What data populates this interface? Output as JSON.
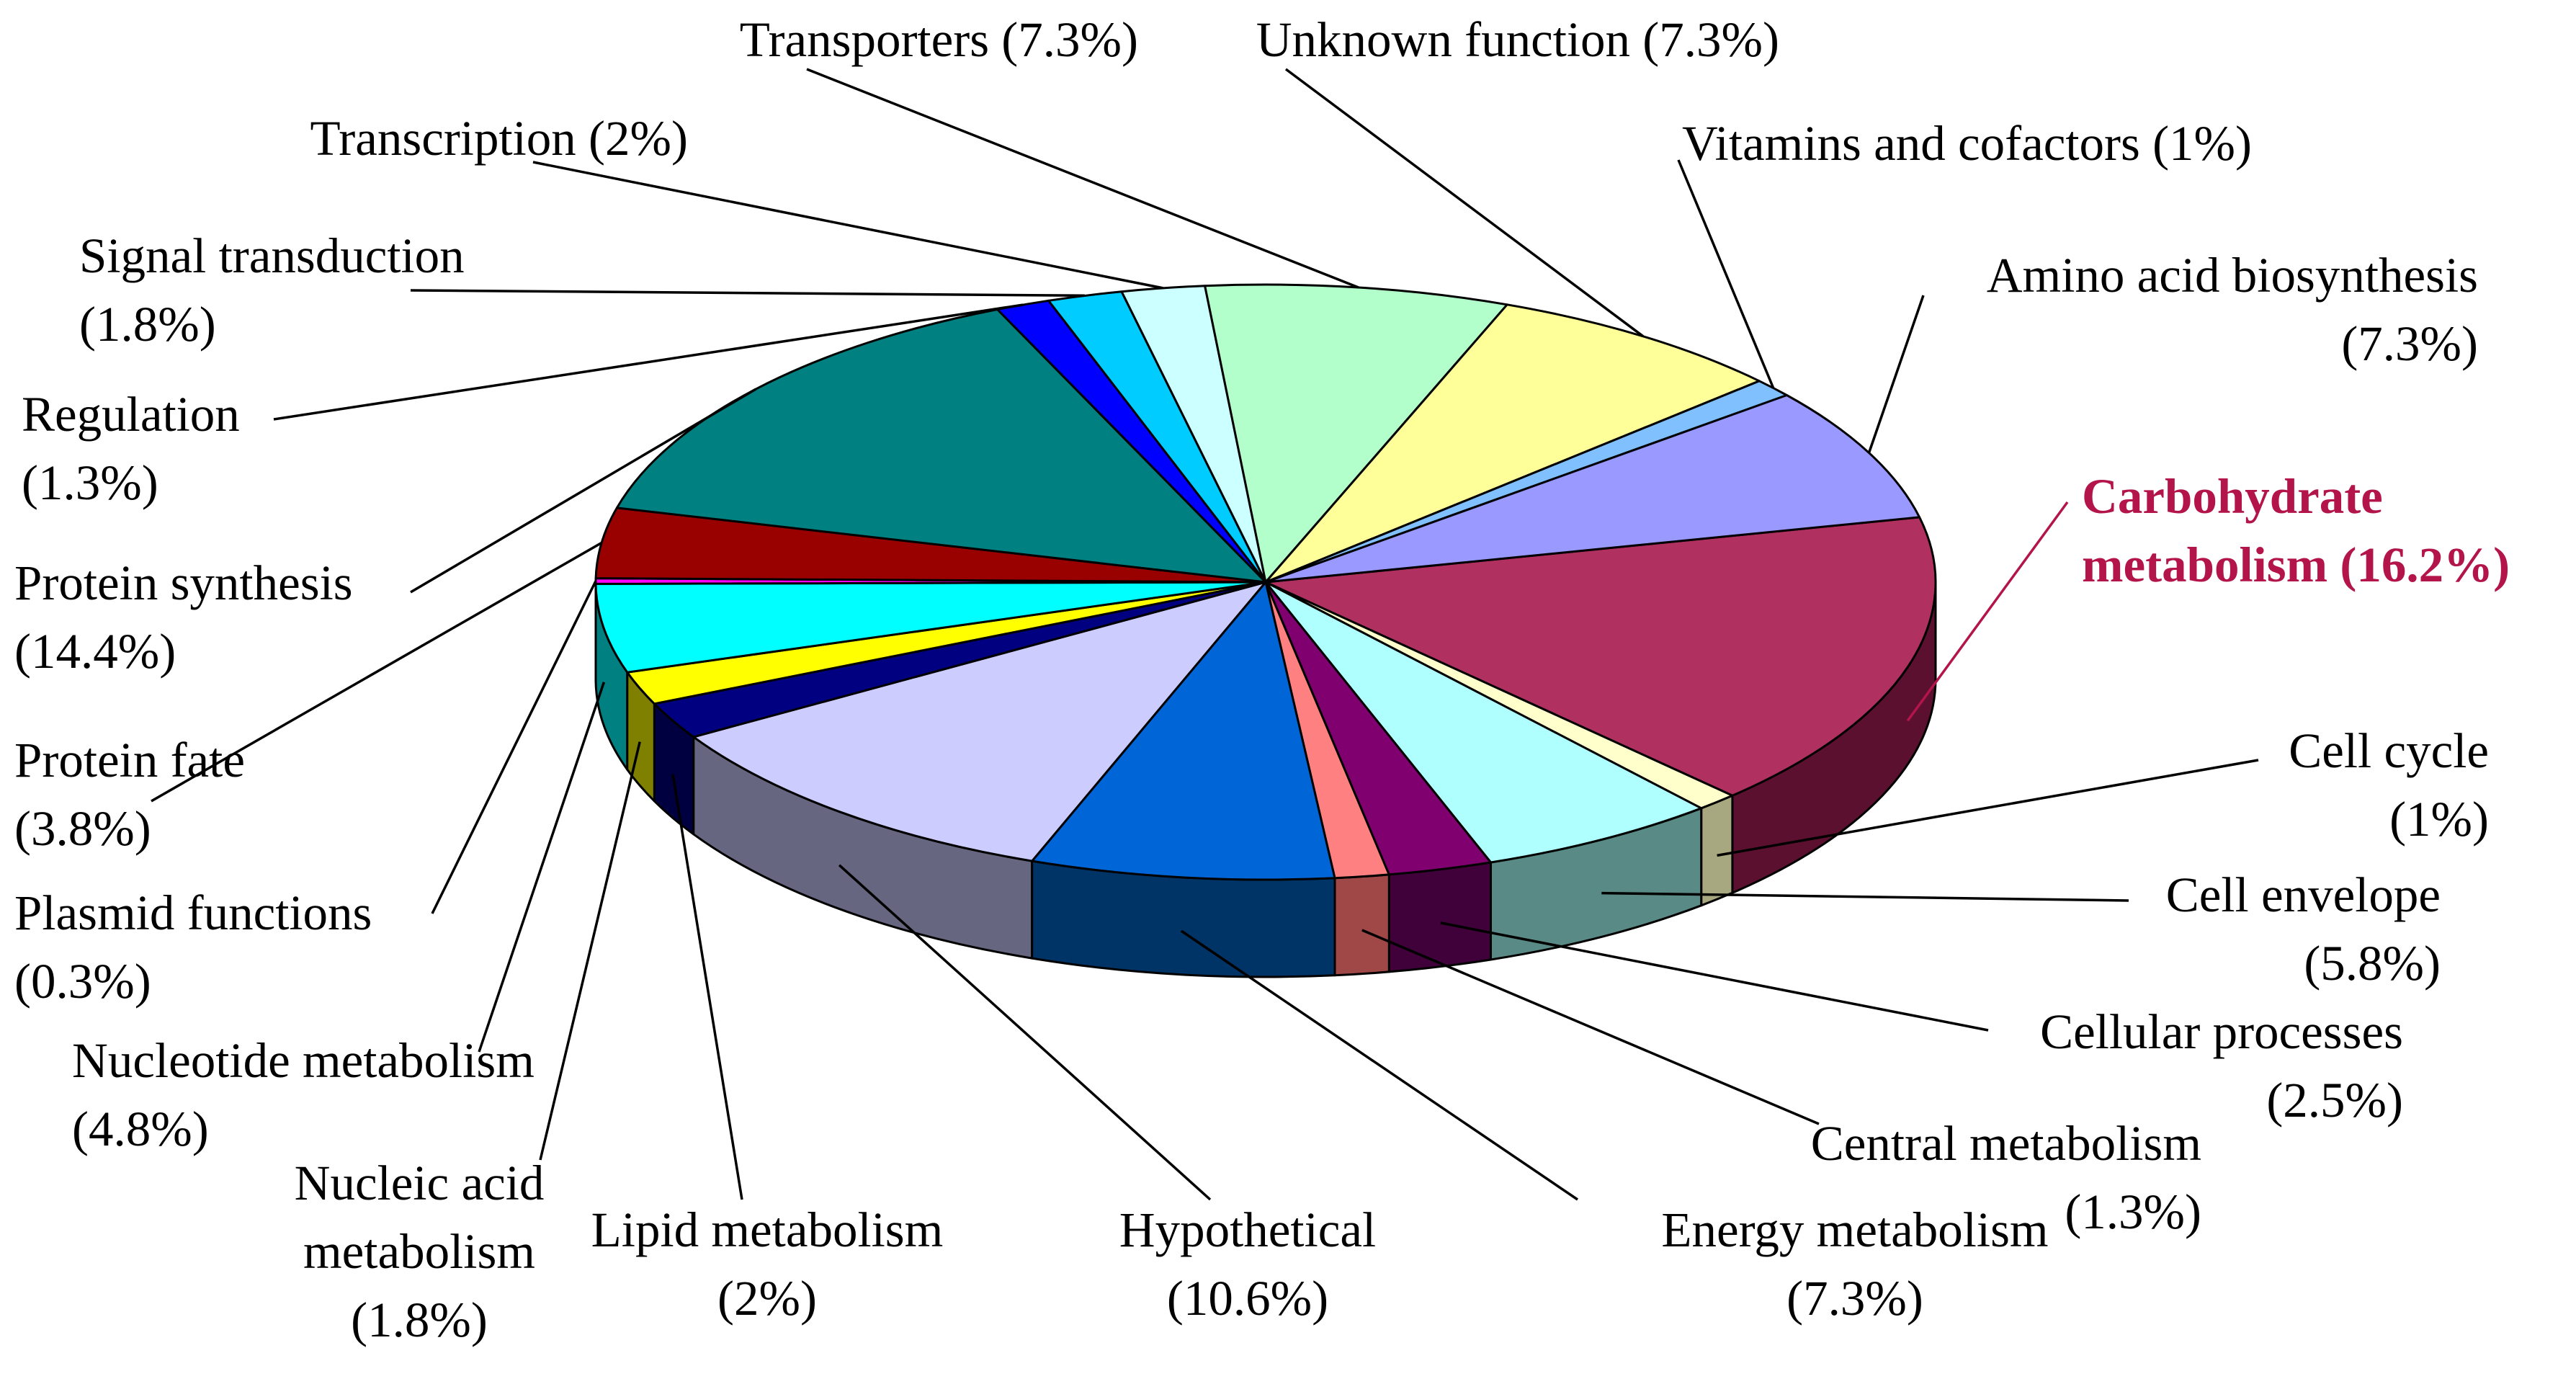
{
  "chart_data": {
    "type": "pie",
    "style": "3d-exploded-pie",
    "title": "",
    "slices": [
      {
        "label": "Carbohydrate metabolism (16.2%)",
        "category": "Carbohydrate metabolism",
        "value": 16.2,
        "color": "#b03060",
        "side_color": "#5c1030",
        "highlight": true,
        "lines": [
          "Carbohydrate",
          "metabolism (16.2%)"
        ]
      },
      {
        "label": "Cell cycle (1%)",
        "category": "Cell cycle",
        "value": 1.0,
        "color": "#ffffcc",
        "side_color": "#a8a880",
        "lines": [
          "Cell cycle",
          "(1%)"
        ]
      },
      {
        "label": "Cell envelope (5.8%)",
        "category": "Cell envelope",
        "value": 5.8,
        "color": "#b0ffff",
        "side_color": "#5a8a86",
        "lines": [
          "Cell envelope",
          "(5.8%)"
        ]
      },
      {
        "label": "Cellular processes (2.5%)",
        "category": "Cellular processes",
        "value": 2.5,
        "color": "#800070",
        "side_color": "#40003a",
        "lines": [
          "Cellular processes",
          "(2.5%)"
        ]
      },
      {
        "label": "Central metabolism (1.3%)",
        "category": "Central metabolism",
        "value": 1.3,
        "color": "#ff8080",
        "side_color": "#a04848",
        "lines": [
          "Central metabolism",
          "(1.3%)"
        ]
      },
      {
        "label": "Energy metabolism (7.3%)",
        "category": "Energy metabolism",
        "value": 7.3,
        "color": "#0066d8",
        "side_color": "#003366",
        "lines": [
          "Energy metabolism",
          "(7.3%)"
        ]
      },
      {
        "label": "Hypothetical (10.6%)",
        "category": "Hypothetical",
        "value": 10.6,
        "color": "#ccccff",
        "side_color": "#666680",
        "lines": [
          "Hypothetical",
          "(10.6%)"
        ]
      },
      {
        "label": "Lipid metabolism (2%)",
        "category": "Lipid metabolism",
        "value": 2.0,
        "color": "#000080",
        "side_color": "#000040",
        "lines": [
          "Lipid metabolism",
          "(2%)"
        ]
      },
      {
        "label": "Nucleic acid metabolism (1.8%)",
        "category": "Nucleic acid metabolism",
        "value": 1.8,
        "color": "#ffff00",
        "side_color": "#808000",
        "lines": [
          "Nucleic acid",
          "metabolism",
          "(1.8%)"
        ]
      },
      {
        "label": "Nucleotide metabolism (4.8%)",
        "category": "Nucleotide metabolism",
        "value": 4.8,
        "color": "#00ffff",
        "side_color": "#008080",
        "lines": [
          "Nucleotide metabolism",
          "(4.8%)"
        ]
      },
      {
        "label": "Plasmid functions (0.3%)",
        "category": "Plasmid functions",
        "value": 0.3,
        "color": "#ff00ff",
        "side_color": "#800080",
        "lines": [
          "Plasmid functions",
          "(0.3%)"
        ]
      },
      {
        "label": "Protein fate (3.8%)",
        "category": "Protein fate",
        "value": 3.8,
        "color": "#990000",
        "side_color": "#4c0000",
        "lines": [
          "Protein fate",
          "(3.8%)"
        ]
      },
      {
        "label": "Protein synthesis (14.4%)",
        "category": "Protein synthesis",
        "value": 14.4,
        "color": "#008080",
        "side_color": "#004040",
        "lines": [
          "Protein synthesis",
          "(14.4%)"
        ]
      },
      {
        "label": "Regulation (1.3%)",
        "category": "Regulation",
        "value": 1.3,
        "color": "#0000ff",
        "side_color": "#000080",
        "lines": [
          "Regulation",
          "(1.3%)"
        ]
      },
      {
        "label": "Signal transduction (1.8%)",
        "category": "Signal transduction",
        "value": 1.8,
        "color": "#00ccff",
        "side_color": "#006680",
        "lines": [
          "Signal transduction",
          "(1.8%)"
        ]
      },
      {
        "label": "Transcription (2%)",
        "category": "Transcription",
        "value": 2.0,
        "color": "#ccffff",
        "side_color": "#668080",
        "lines": [
          "Transcription (2%)"
        ]
      },
      {
        "label": "Transporters (7.3%)",
        "category": "Transporters",
        "value": 7.3,
        "color": "#b3ffcc",
        "side_color": "#5a8066",
        "lines": [
          "Transporters (7.3%)"
        ]
      },
      {
        "label": "Unknown function (7.3%)",
        "category": "Unknown function",
        "value": 7.3,
        "color": "#ffff99",
        "side_color": "#80804c",
        "lines": [
          "Unknown function (7.3%)"
        ]
      },
      {
        "label": "Vitamins and cofactors (1%)",
        "category": "Vitamins and cofactors",
        "value": 1.0,
        "color": "#80c0ff",
        "side_color": "#406080",
        "lines": [
          "Vitamins and cofactors (1%)"
        ]
      },
      {
        "label": "Amino acid biosynthesis (7.3%)",
        "category": "Amino acid biosynthesis",
        "value": 7.3,
        "color": "#9999ff",
        "side_color": "#4c4c80",
        "lines": [
          "Amino acid biosynthesis",
          "(7.3%)"
        ]
      }
    ]
  }
}
